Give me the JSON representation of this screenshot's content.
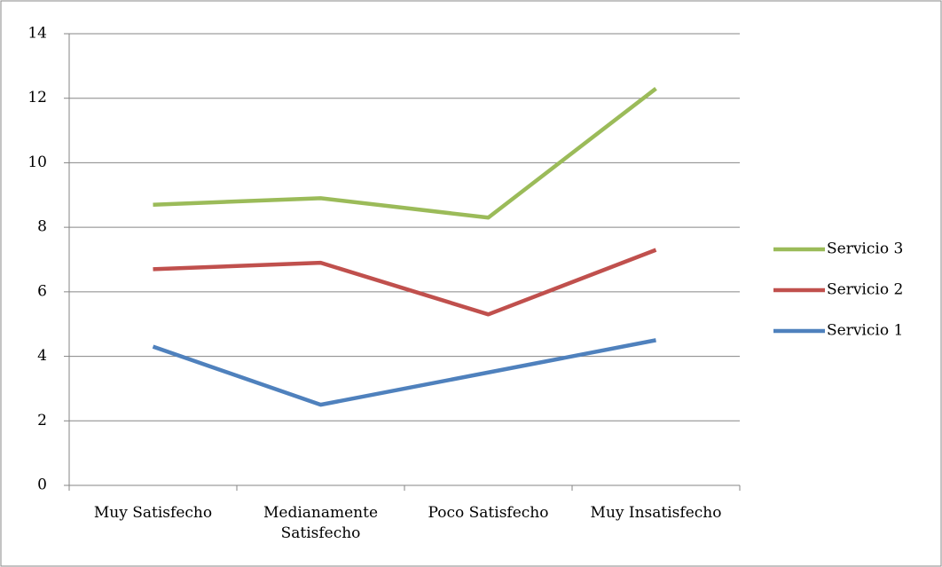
{
  "chart_data": {
    "type": "line",
    "categories": [
      "Muy Satisfecho",
      "Medianamente Satisfecho",
      "Poco Satisfecho",
      "Muy Insatisfecho"
    ],
    "series": [
      {
        "name": "Servicio 1",
        "color": "#4f81bd",
        "values": [
          4.3,
          2.5,
          3.5,
          4.5
        ]
      },
      {
        "name": "Servicio 2",
        "color": "#c0504d",
        "values": [
          6.7,
          6.9,
          5.3,
          7.3
        ]
      },
      {
        "name": "Servicio 3",
        "color": "#9bbb59",
        "values": [
          8.7,
          8.9,
          8.3,
          12.3
        ]
      }
    ],
    "ylim": [
      0,
      14
    ],
    "yticks": [
      0,
      2,
      4,
      6,
      8,
      10,
      12,
      14
    ],
    "grid": true,
    "legend": "right"
  }
}
